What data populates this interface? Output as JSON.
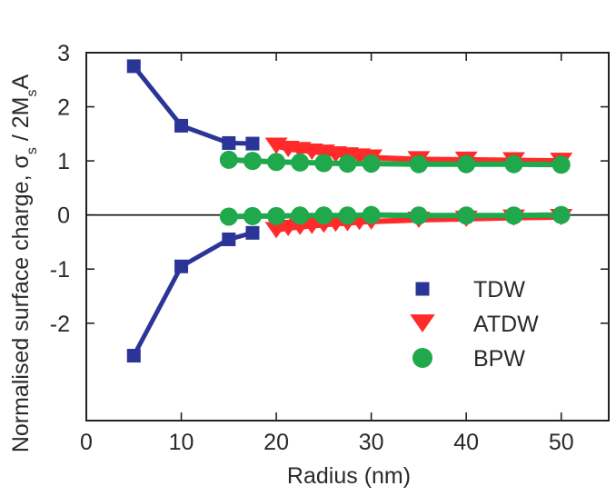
{
  "chart_data": {
    "type": "scatter",
    "title": "",
    "xlabel": "Radius (nm)",
    "ylabel_main": "Normalised surface charge, σ",
    "ylabel_sub1": "s",
    "ylabel_mid": " / 2M",
    "ylabel_sub2": "s",
    "ylabel_tail": "A",
    "xlim": [
      0,
      55
    ],
    "ylim": [
      -3.8,
      3
    ],
    "xticks": [
      0,
      10,
      20,
      30,
      40,
      50
    ],
    "yticks": [
      -2,
      -1,
      0,
      1,
      2,
      3
    ],
    "reference_line_y": 0,
    "legend_position": "lower-right",
    "series": [
      {
        "name": "TDW",
        "color": "#2b3598",
        "marker": "square",
        "branches": [
          {
            "x": [
              5,
              10,
              15,
              17.5
            ],
            "y": [
              2.75,
              1.65,
              1.33,
              1.32
            ]
          },
          {
            "x": [
              5,
              10,
              15,
              17.5
            ],
            "y": [
              -2.6,
              -0.95,
              -0.45,
              -0.33
            ]
          }
        ]
      },
      {
        "name": "ATDW",
        "color": "#ff2a2a",
        "marker": "triangle-down",
        "branches": [
          {
            "x": [
              20,
              21.25,
              22.5,
              23.75,
              25,
              26.25,
              27.5,
              28.75,
              30,
              35,
              40,
              45,
              50
            ],
            "y": [
              1.28,
              1.22,
              1.2,
              1.17,
              1.15,
              1.12,
              1.1,
              1.08,
              1.06,
              1.03,
              1.02,
              1.01,
              1.0
            ]
          },
          {
            "x": [
              20,
              21.25,
              22.5,
              23.75,
              25,
              26.25,
              27.5,
              28.75,
              30,
              35,
              40,
              45,
              50
            ],
            "y": [
              -0.28,
              -0.24,
              -0.22,
              -0.2,
              -0.18,
              -0.16,
              -0.15,
              -0.13,
              -0.12,
              -0.09,
              -0.07,
              -0.05,
              -0.04
            ]
          }
        ]
      },
      {
        "name": "BPW",
        "color": "#1fa84c",
        "marker": "circle",
        "branches": [
          {
            "x": [
              15,
              17.5,
              20,
              22.5,
              25,
              27.5,
              30,
              35,
              40,
              45,
              50
            ],
            "y": [
              1.02,
              1.0,
              0.98,
              0.97,
              0.96,
              0.95,
              0.95,
              0.94,
              0.94,
              0.94,
              0.93
            ]
          },
          {
            "x": [
              15,
              17.5,
              20,
              22.5,
              25,
              27.5,
              30,
              35,
              40,
              45,
              50
            ],
            "y": [
              -0.03,
              -0.02,
              -0.02,
              -0.01,
              -0.01,
              -0.01,
              0.0,
              -0.01,
              -0.01,
              -0.01,
              0.0
            ]
          }
        ]
      }
    ]
  }
}
